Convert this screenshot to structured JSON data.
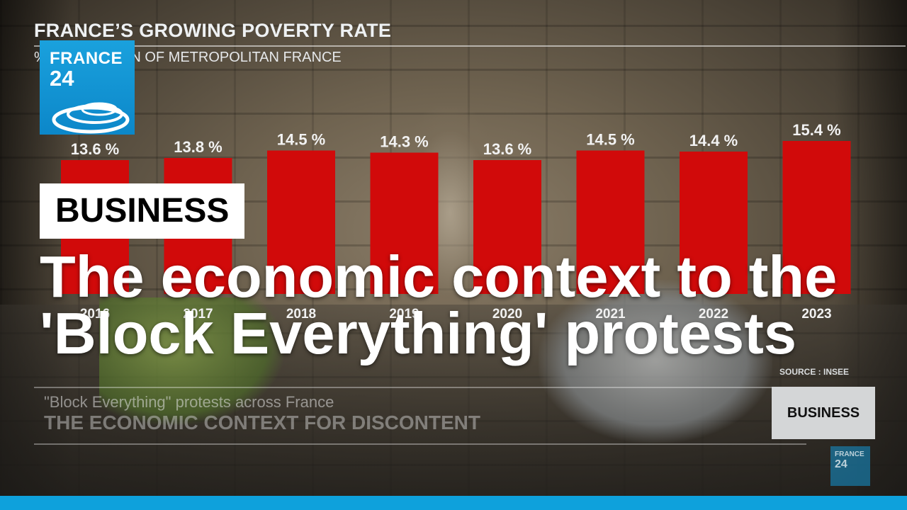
{
  "chart_data": {
    "type": "bar",
    "title": "FRANCE’S GROWING POVERTY RATE",
    "subtitle": "% POPULATION OF METROPOLITAN FRANCE",
    "categories": [
      "2016",
      "2017",
      "2018",
      "2019",
      "2020",
      "2021",
      "2022",
      "2023"
    ],
    "values": [
      13.6,
      13.8,
      14.5,
      14.3,
      13.6,
      14.5,
      14.4,
      15.4
    ],
    "data_labels": [
      "13.6 %",
      "13.8 %",
      "14.5 %",
      "14.3 %",
      "13.6 %",
      "14.5 %",
      "14.4 %",
      "15.4 %"
    ],
    "bar_color": "#d10a0a",
    "source": "SOURCE : INSEE"
  },
  "logo": {
    "line1": "FRANCE",
    "line2": "24",
    "color": "#0c87c9"
  },
  "category_label": "BUSINESS",
  "headline": "The economic context to the 'Block Everything' protests",
  "ticker": {
    "line1": "\"Block Everything\" protests across France",
    "line2": "THE ECONOMIC CONTEXT FOR DISCONTENT"
  },
  "bug": {
    "label": "BUSINESS",
    "logo_line1": "FRANCE",
    "logo_line2": "24"
  },
  "accent_color": "#0ea1dc"
}
